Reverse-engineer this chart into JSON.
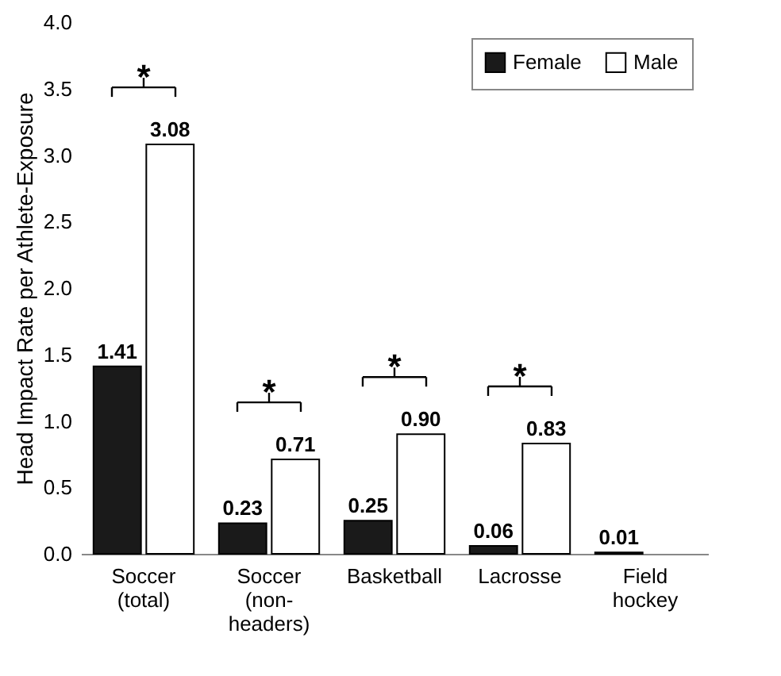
{
  "chart_data": {
    "type": "bar",
    "ylabel": "Head Impact Rate per Athlete-Exposure",
    "categories": [
      "Soccer\n(total)",
      "Soccer\n(non-\nheaders)",
      "Basketball",
      "Lacrosse",
      "Field\nhockey"
    ],
    "series": [
      {
        "name": "Female",
        "color": "#1a1a1a",
        "values": [
          1.41,
          0.23,
          0.25,
          0.06,
          0.01
        ],
        "value_labels": [
          "1.41",
          "0.23",
          "0.25",
          "0.06",
          "0.01"
        ]
      },
      {
        "name": "Male",
        "color": "#ffffff",
        "values": [
          3.08,
          0.71,
          0.9,
          0.83,
          null
        ],
        "value_labels": [
          "3.08",
          "0.71",
          "0.90",
          "0.83",
          null
        ]
      }
    ],
    "ylim": [
      0,
      4
    ],
    "yticks": [
      {
        "value": 0,
        "label": "0.0"
      },
      {
        "value": 0.5,
        "label": "0.5"
      },
      {
        "value": 1,
        "label": "1.0"
      },
      {
        "value": 1.5,
        "label": "1.5"
      },
      {
        "value": 2,
        "label": "2.0"
      },
      {
        "value": 2.5,
        "label": "2.5"
      },
      {
        "value": 3,
        "label": "3.0"
      },
      {
        "value": 3.5,
        "label": "3.5"
      },
      {
        "value": 4,
        "label": "4.0"
      }
    ],
    "annotations": [
      "*",
      "*",
      "*",
      "*"
    ],
    "grid": false,
    "legend": "top right"
  }
}
